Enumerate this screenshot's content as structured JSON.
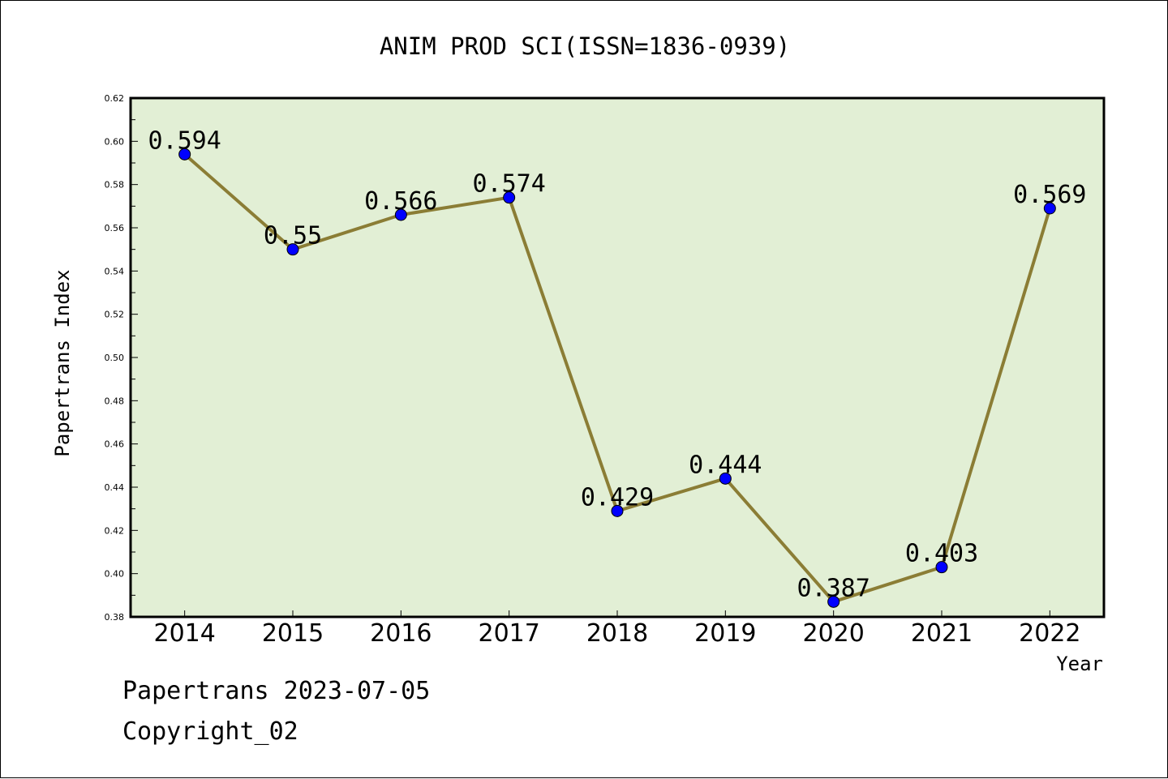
{
  "chart_data": {
    "type": "line",
    "title": "ANIM PROD SCI(ISSN=1836-0939)",
    "xlabel": "Year",
    "ylabel": "Papertrans Index",
    "categories": [
      "2014",
      "2015",
      "2016",
      "2017",
      "2018",
      "2019",
      "2020",
      "2021",
      "2022"
    ],
    "values": [
      0.594,
      0.55,
      0.566,
      0.574,
      0.429,
      0.444,
      0.387,
      0.403,
      0.569
    ],
    "data_labels": [
      "0.594",
      "0.55",
      "0.566",
      "0.574",
      "0.429",
      "0.444",
      "0.387",
      "0.403",
      "0.569"
    ],
    "ylim": [
      0.38,
      0.62
    ],
    "yticks": [
      "0.38",
      "0.40",
      "0.42",
      "0.44",
      "0.46",
      "0.48",
      "0.50",
      "0.52",
      "0.54",
      "0.56",
      "0.58",
      "0.60",
      "0.62"
    ],
    "grid": false,
    "colors": {
      "plot_background": "#e2efd5",
      "line": "#8b7d35",
      "marker": "#0000ff"
    }
  },
  "footer": {
    "date_text": "Papertrans 2023-07-05",
    "copyright_text": "Copyright_02"
  }
}
